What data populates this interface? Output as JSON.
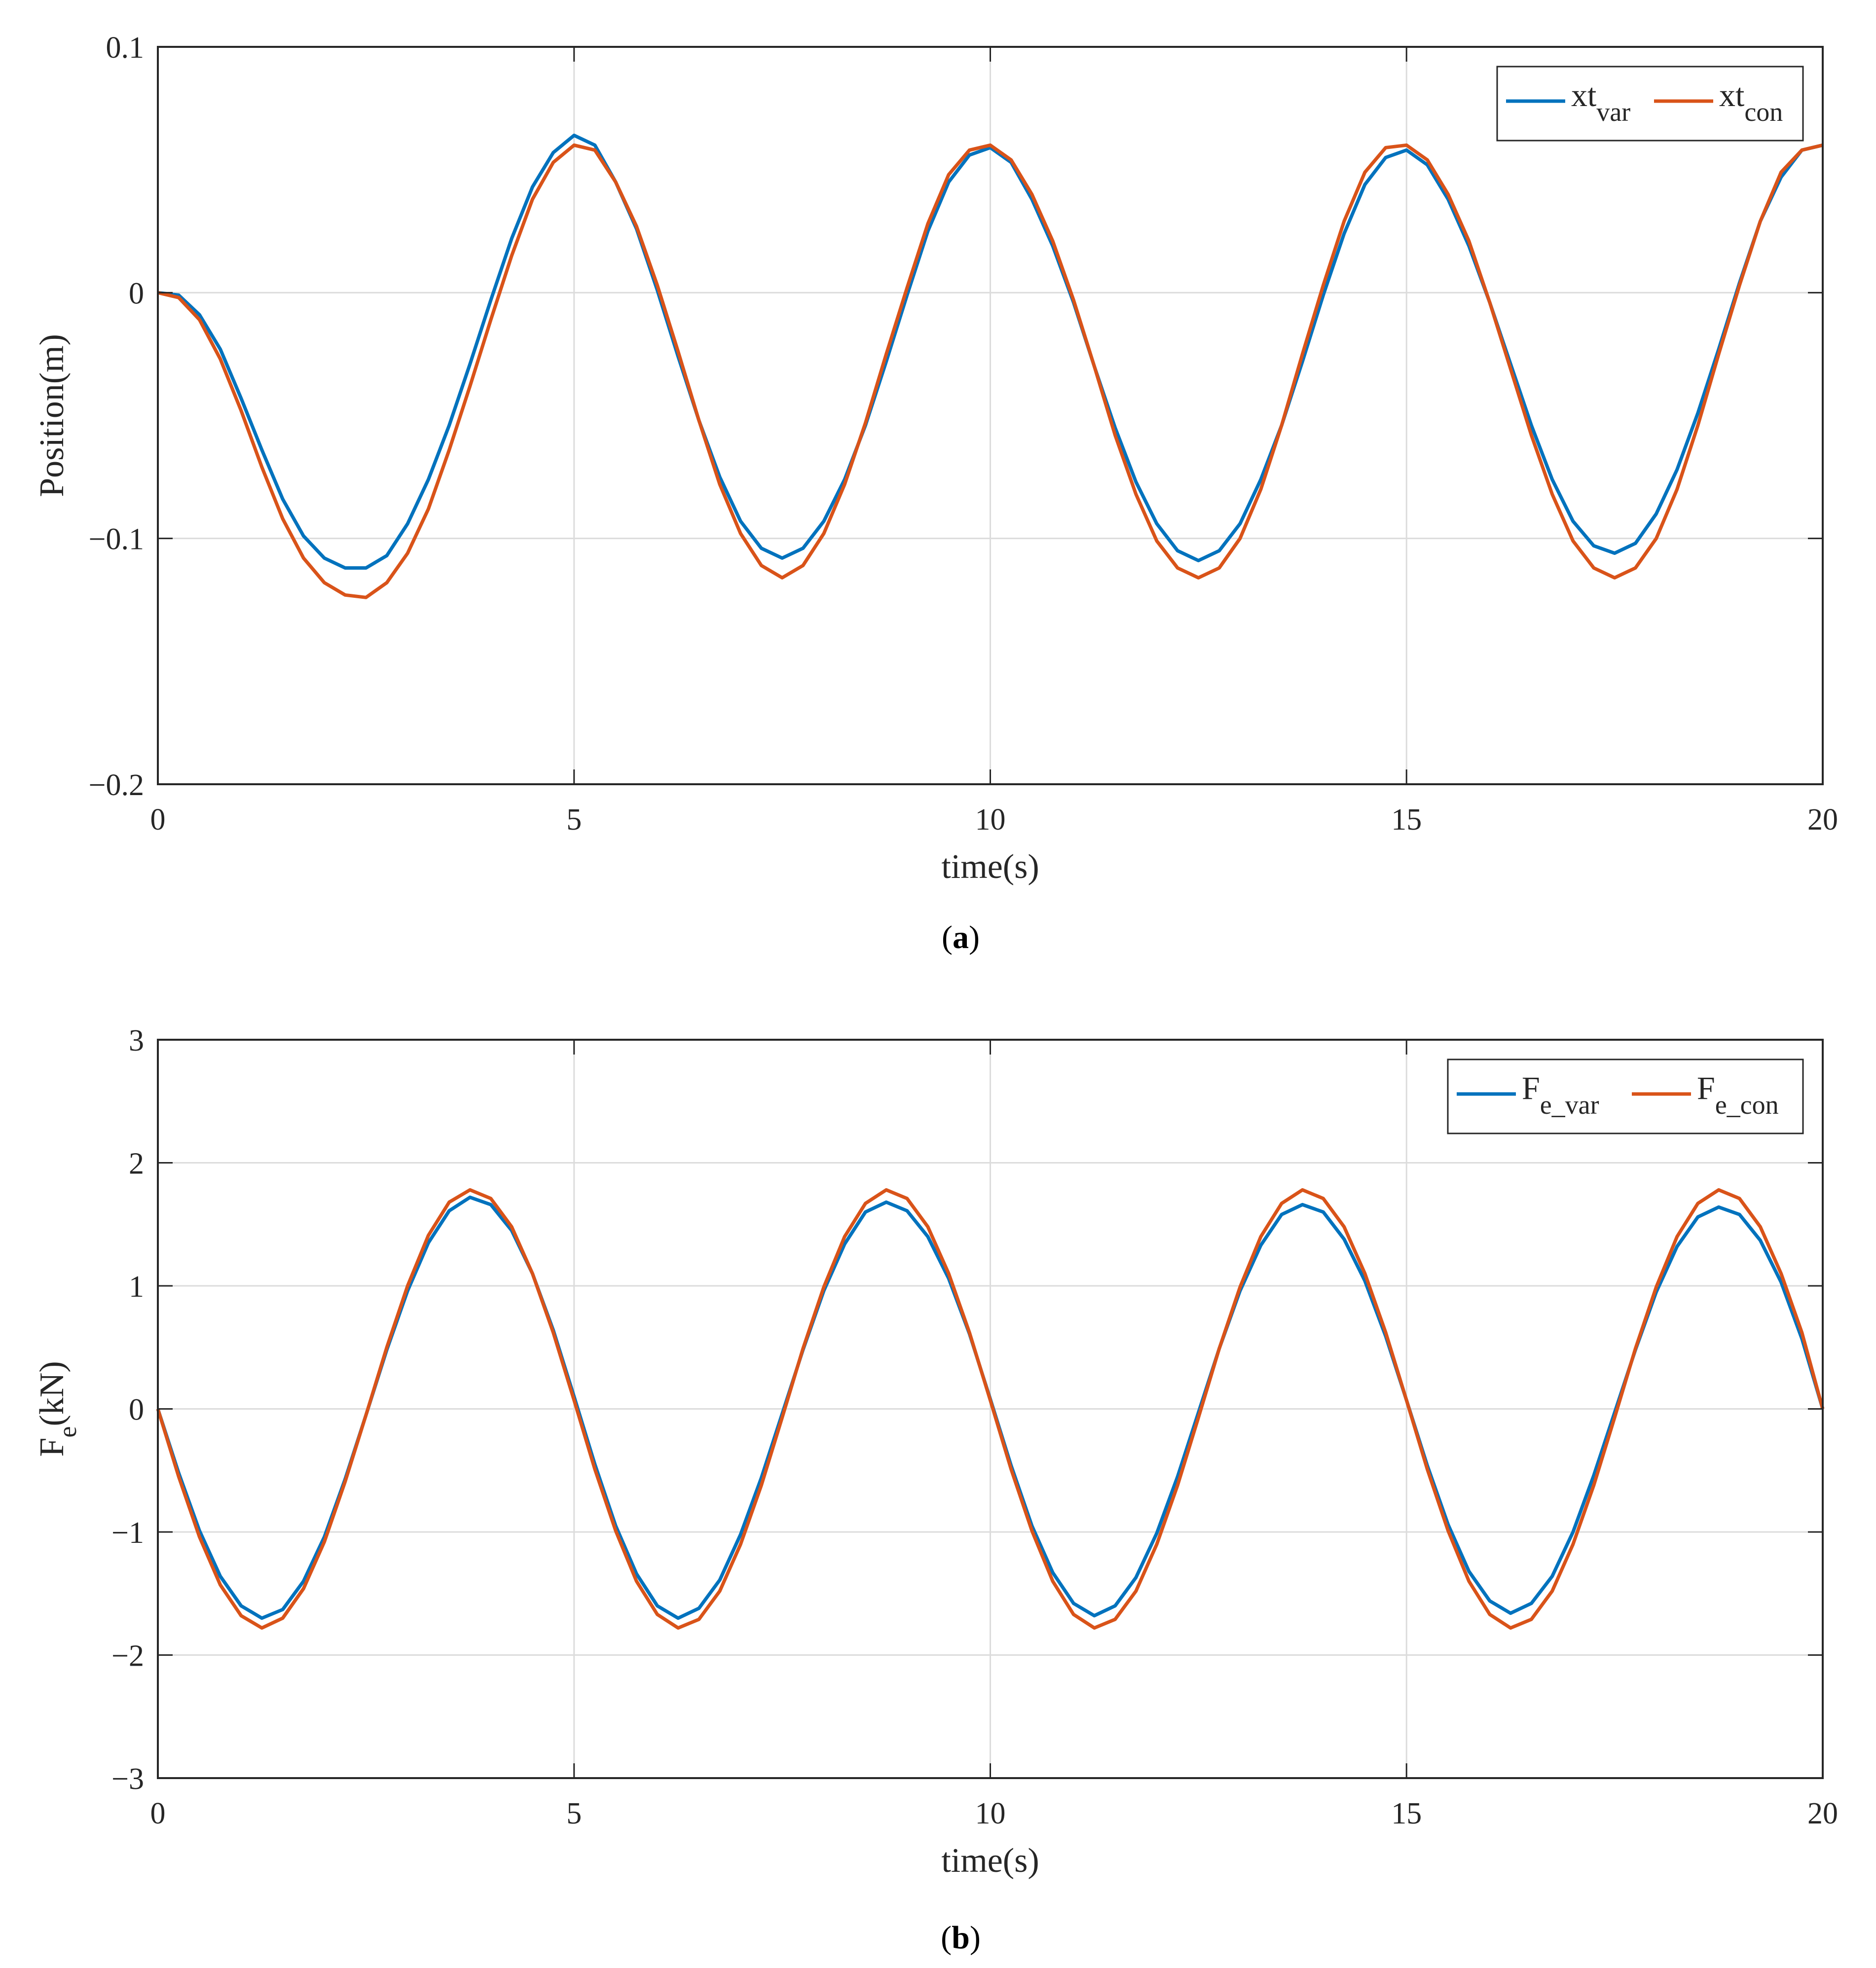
{
  "chart_data": [
    {
      "type": "line",
      "caption": {
        "open": "(",
        "letter": "a",
        "close": ")"
      },
      "xlabel": "time(s)",
      "ylabel": "Position(m)",
      "xlim": [
        0,
        20
      ],
      "ylim": [
        -0.2,
        0.1
      ],
      "xticks": [
        0,
        5,
        10,
        15,
        20
      ],
      "yticks": [
        -0.2,
        -0.1,
        0,
        0.1
      ],
      "xtick_labels": [
        "0",
        "5",
        "10",
        "15",
        "20"
      ],
      "ytick_labels": [
        "−0.2",
        "−0.1",
        "0",
        "0.1"
      ],
      "grid": true,
      "legend_position": "top-right",
      "series": [
        {
          "name": "xt",
          "subscript": "var",
          "color": "#0072BD",
          "x": [
            0,
            0.25,
            0.5,
            0.75,
            1,
            1.25,
            1.5,
            1.75,
            2,
            2.25,
            2.5,
            2.75,
            3,
            3.25,
            3.5,
            3.75,
            4,
            4.25,
            4.5,
            4.75,
            5,
            5.25,
            5.5,
            5.75,
            6,
            6.25,
            6.5,
            6.75,
            7,
            7.25,
            7.5,
            7.75,
            8,
            8.25,
            8.5,
            8.75,
            9,
            9.25,
            9.5,
            9.75,
            10,
            10.25,
            10.5,
            10.75,
            11,
            11.25,
            11.5,
            11.75,
            12,
            12.25,
            12.5,
            12.75,
            13,
            13.25,
            13.5,
            13.75,
            14,
            14.25,
            14.5,
            14.75,
            15,
            15.25,
            15.5,
            15.75,
            16,
            16.25,
            16.5,
            16.75,
            17,
            17.25,
            17.5,
            17.75,
            18,
            18.25,
            18.5,
            18.75,
            19,
            19.25,
            19.5,
            19.75,
            20
          ],
          "y": [
            0,
            -0.001,
            -0.009,
            -0.023,
            -0.043,
            -0.064,
            -0.084,
            -0.099,
            -0.108,
            -0.112,
            -0.112,
            -0.107,
            -0.094,
            -0.076,
            -0.054,
            -0.029,
            -0.003,
            0.022,
            0.043,
            0.057,
            0.064,
            0.06,
            0.045,
            0.026,
            0.001,
            -0.026,
            -0.052,
            -0.075,
            -0.093,
            -0.104,
            -0.108,
            -0.104,
            -0.093,
            -0.076,
            -0.054,
            -0.028,
            -0.001,
            0.025,
            0.045,
            0.056,
            0.059,
            0.053,
            0.038,
            0.019,
            -0.004,
            -0.03,
            -0.055,
            -0.077,
            -0.094,
            -0.105,
            -0.109,
            -0.105,
            -0.094,
            -0.076,
            -0.054,
            -0.028,
            -0.001,
            0.024,
            0.044,
            0.055,
            0.058,
            0.052,
            0.038,
            0.019,
            -0.004,
            -0.029,
            -0.054,
            -0.076,
            -0.093,
            -0.103,
            -0.106,
            -0.102,
            -0.09,
            -0.072,
            -0.049,
            -0.023,
            0.004,
            0.029,
            0.047,
            0.058,
            0.06
          ]
        },
        {
          "name": "xt",
          "subscript": "con",
          "color": "#D95319",
          "x": [
            0,
            0.25,
            0.5,
            0.75,
            1,
            1.25,
            1.5,
            1.75,
            2,
            2.25,
            2.5,
            2.75,
            3,
            3.25,
            3.5,
            3.75,
            4,
            4.25,
            4.5,
            4.75,
            5,
            5.25,
            5.5,
            5.75,
            6,
            6.25,
            6.5,
            6.75,
            7,
            7.25,
            7.5,
            7.75,
            8,
            8.25,
            8.5,
            8.75,
            9,
            9.25,
            9.5,
            9.75,
            10,
            10.25,
            10.5,
            10.75,
            11,
            11.25,
            11.5,
            11.75,
            12,
            12.25,
            12.5,
            12.75,
            13,
            13.25,
            13.5,
            13.75,
            14,
            14.25,
            14.5,
            14.75,
            15,
            15.25,
            15.5,
            15.75,
            16,
            16.25,
            16.5,
            16.75,
            17,
            17.25,
            17.5,
            17.75,
            18,
            18.25,
            18.5,
            18.75,
            19,
            19.25,
            19.5,
            19.75,
            20
          ],
          "y": [
            0,
            -0.002,
            -0.011,
            -0.027,
            -0.048,
            -0.071,
            -0.092,
            -0.108,
            -0.118,
            -0.123,
            -0.124,
            -0.118,
            -0.106,
            -0.088,
            -0.064,
            -0.038,
            -0.011,
            0.015,
            0.038,
            0.053,
            0.06,
            0.058,
            0.045,
            0.027,
            0.003,
            -0.024,
            -0.052,
            -0.078,
            -0.098,
            -0.111,
            -0.116,
            -0.111,
            -0.098,
            -0.078,
            -0.053,
            -0.025,
            0.002,
            0.028,
            0.048,
            0.058,
            0.06,
            0.054,
            0.04,
            0.021,
            -0.003,
            -0.03,
            -0.058,
            -0.082,
            -0.101,
            -0.112,
            -0.116,
            -0.112,
            -0.1,
            -0.08,
            -0.054,
            -0.025,
            0.003,
            0.029,
            0.049,
            0.059,
            0.06,
            0.054,
            0.04,
            0.021,
            -0.004,
            -0.031,
            -0.058,
            -0.082,
            -0.101,
            -0.112,
            -0.116,
            -0.112,
            -0.1,
            -0.08,
            -0.054,
            -0.025,
            0.003,
            0.029,
            0.049,
            0.058,
            0.06
          ]
        }
      ]
    },
    {
      "type": "line",
      "caption": {
        "open": "(",
        "letter": "b",
        "close": ")"
      },
      "xlabel": "time(s)",
      "ylabel": "F",
      "ylabel_sub": "e",
      "ylabel_rest": "(kN)",
      "xlim": [
        0,
        20
      ],
      "ylim": [
        -3,
        3
      ],
      "xticks": [
        0,
        5,
        10,
        15,
        20
      ],
      "yticks": [
        -3,
        -2,
        -1,
        0,
        1,
        2,
        3
      ],
      "xtick_labels": [
        "0",
        "5",
        "10",
        "15",
        "20"
      ],
      "ytick_labels": [
        "−3",
        "−2",
        "−1",
        "0",
        "1",
        "2",
        "3"
      ],
      "grid": true,
      "legend_position": "top-right",
      "series": [
        {
          "name": "F",
          "subscript": "e_var",
          "color": "#0072BD",
          "x": [
            0,
            0.25,
            0.5,
            0.75,
            1,
            1.25,
            1.5,
            1.75,
            2,
            2.25,
            2.5,
            2.75,
            3,
            3.25,
            3.5,
            3.75,
            4,
            4.25,
            4.5,
            4.75,
            5,
            5.25,
            5.5,
            5.75,
            6,
            6.25,
            6.5,
            6.75,
            7,
            7.25,
            7.5,
            7.75,
            8,
            8.25,
            8.5,
            8.75,
            9,
            9.25,
            9.5,
            9.75,
            10,
            10.25,
            10.5,
            10.75,
            11,
            11.25,
            11.5,
            11.75,
            12,
            12.25,
            12.5,
            12.75,
            13,
            13.25,
            13.5,
            13.75,
            14,
            14.25,
            14.5,
            14.75,
            15,
            15.25,
            15.5,
            15.75,
            16,
            16.25,
            16.5,
            16.75,
            17,
            17.25,
            17.5,
            17.75,
            18,
            18.25,
            18.5,
            18.75,
            19,
            19.25,
            19.5,
            19.75,
            20
          ],
          "y": [
            0,
            -0.52,
            -0.99,
            -1.36,
            -1.6,
            -1.7,
            -1.63,
            -1.4,
            -1.04,
            -0.57,
            -0.05,
            0.48,
            0.96,
            1.35,
            1.61,
            1.72,
            1.66,
            1.45,
            1.1,
            0.64,
            0.1,
            -0.45,
            -0.95,
            -1.34,
            -1.6,
            -1.7,
            -1.62,
            -1.39,
            -1.02,
            -0.56,
            -0.04,
            0.48,
            0.96,
            1.34,
            1.6,
            1.68,
            1.61,
            1.4,
            1.06,
            0.61,
            0.08,
            -0.46,
            -0.95,
            -1.33,
            -1.58,
            -1.68,
            -1.6,
            -1.37,
            -1.01,
            -0.55,
            -0.03,
            0.49,
            0.96,
            1.33,
            1.58,
            1.66,
            1.6,
            1.38,
            1.04,
            0.59,
            0.07,
            -0.46,
            -0.94,
            -1.32,
            -1.56,
            -1.66,
            -1.58,
            -1.36,
            -1.0,
            -0.54,
            -0.03,
            0.48,
            0.95,
            1.32,
            1.56,
            1.64,
            1.58,
            1.37,
            1.03,
            0.57,
            0.0
          ]
        },
        {
          "name": "F",
          "subscript": "e_con",
          "color": "#D95319",
          "x": [
            0,
            0.25,
            0.5,
            0.75,
            1,
            1.25,
            1.5,
            1.75,
            2,
            2.25,
            2.5,
            2.75,
            3,
            3.25,
            3.5,
            3.75,
            4,
            4.25,
            4.5,
            4.75,
            5,
            5.25,
            5.5,
            5.75,
            6,
            6.25,
            6.5,
            6.75,
            7,
            7.25,
            7.5,
            7.75,
            8,
            8.25,
            8.5,
            8.75,
            9,
            9.25,
            9.5,
            9.75,
            10,
            10.25,
            10.5,
            10.75,
            11,
            11.25,
            11.5,
            11.75,
            12,
            12.25,
            12.5,
            12.75,
            13,
            13.25,
            13.5,
            13.75,
            14,
            14.25,
            14.5,
            14.75,
            15,
            15.25,
            15.5,
            15.75,
            16,
            16.25,
            16.5,
            16.75,
            17,
            17.25,
            17.5,
            17.75,
            18,
            18.25,
            18.5,
            18.75,
            19,
            19.25,
            19.5,
            19.75,
            20
          ],
          "y": [
            0,
            -0.55,
            -1.04,
            -1.43,
            -1.68,
            -1.78,
            -1.7,
            -1.46,
            -1.08,
            -0.59,
            -0.05,
            0.5,
            1.0,
            1.41,
            1.68,
            1.78,
            1.71,
            1.48,
            1.1,
            0.62,
            0.07,
            -0.49,
            -0.99,
            -1.4,
            -1.67,
            -1.78,
            -1.71,
            -1.48,
            -1.1,
            -0.62,
            -0.07,
            0.49,
            0.99,
            1.4,
            1.67,
            1.78,
            1.71,
            1.48,
            1.1,
            0.62,
            0.07,
            -0.49,
            -0.99,
            -1.4,
            -1.67,
            -1.78,
            -1.71,
            -1.48,
            -1.1,
            -0.62,
            -0.07,
            0.49,
            0.99,
            1.4,
            1.67,
            1.78,
            1.71,
            1.48,
            1.1,
            0.62,
            0.07,
            -0.49,
            -0.99,
            -1.4,
            -1.67,
            -1.78,
            -1.71,
            -1.48,
            -1.1,
            -0.62,
            -0.07,
            0.49,
            0.99,
            1.4,
            1.67,
            1.78,
            1.71,
            1.48,
            1.1,
            0.62,
            0.0
          ]
        }
      ]
    }
  ]
}
